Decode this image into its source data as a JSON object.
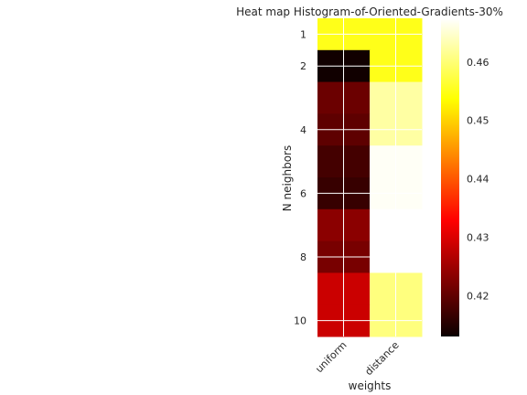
{
  "chart_data": {
    "type": "heatmap",
    "title": "Heat map Histogram-of-Oriented-Gradients-30%",
    "xlabel": "weights",
    "ylabel": "N neighbors",
    "x_categories": [
      "uniform",
      "distance"
    ],
    "y_categories": [
      "1",
      "2",
      "3",
      "4",
      "5",
      "6",
      "7",
      "8",
      "9",
      "10"
    ],
    "y_tick_labels": [
      "1",
      "2",
      "4",
      "6",
      "8",
      "10"
    ],
    "values": [
      [
        0.455,
        0.455
      ],
      [
        0.4135,
        0.455
      ],
      [
        0.4205,
        0.4625
      ],
      [
        0.4195,
        0.4625
      ],
      [
        0.4175,
        0.467
      ],
      [
        0.4165,
        0.467
      ],
      [
        0.423,
        0.4675
      ],
      [
        0.4215,
        0.4675
      ],
      [
        0.428,
        0.4605
      ],
      [
        0.428,
        0.4605
      ]
    ],
    "colormap": "hot",
    "vmin": 0.413,
    "vmax": 0.4675,
    "colorbar_ticks": [
      0.42,
      0.43,
      0.44,
      0.45,
      0.46
    ],
    "grid": true
  }
}
